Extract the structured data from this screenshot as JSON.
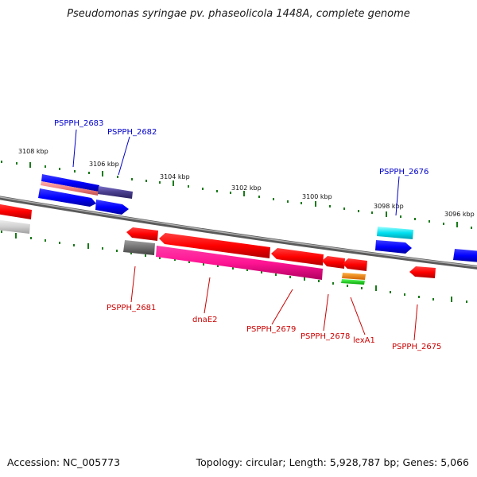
{
  "title": "Pseudomonas syringae pv. phaseolicola 1448A, complete genome",
  "footer": {
    "accession": "Accession: NC_005773",
    "topology": "Topology: circular; Length: 5,928,787 bp; Genes: 5,066"
  },
  "scale": {
    "ticks": [
      "3108 kbp",
      "3106 kbp",
      "3104 kbp",
      "3102 kbp",
      "3100 kbp",
      "3098 kbp",
      "3096 kbp"
    ]
  },
  "genes": {
    "top": [
      "PSPPH_2683",
      "PSPPH_2682",
      "PSPPH_2676"
    ],
    "bottom": [
      "PSPPH_2681",
      "dnaE2",
      "PSPPH_2679",
      "PSPPH_2678",
      "lexA1",
      "PSPPH_2675"
    ]
  },
  "colors": {
    "forward_label": "#0000cc",
    "reverse_label": "#cc0000",
    "tick": "#1a7a1a",
    "backbone": "#808080"
  }
}
